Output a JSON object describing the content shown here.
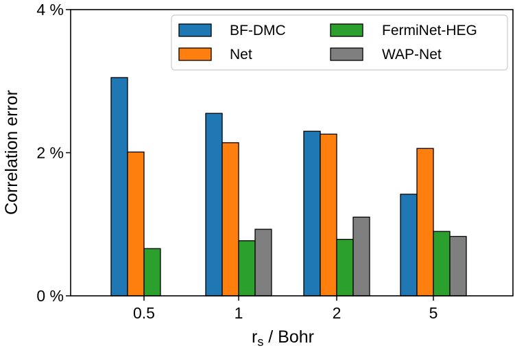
{
  "chart_data": {
    "type": "bar",
    "categories": [
      "0.5",
      "1",
      "2",
      "5"
    ],
    "series": [
      {
        "name": "BF-DMC",
        "color": "#1f77b4",
        "values": [
          3.05,
          2.55,
          2.3,
          1.42
        ]
      },
      {
        "name": "Net",
        "color": "#ff7f0e",
        "values": [
          2.01,
          2.14,
          2.26,
          2.06
        ]
      },
      {
        "name": "FermiNet-HEG",
        "color": "#2ca02c",
        "values": [
          0.66,
          0.77,
          0.79,
          0.9
        ]
      },
      {
        "name": "WAP-Net",
        "color": "#7f7f7f",
        "values": [
          null,
          0.93,
          1.1,
          0.83
        ]
      }
    ],
    "ylim": [
      0,
      4
    ],
    "yticks": [
      {
        "value": 0,
        "label": "0 %"
      },
      {
        "value": 2,
        "label": "2 %"
      },
      {
        "value": 4,
        "label": "4 %"
      }
    ],
    "ylabel": "Correlation error",
    "xlabel": {
      "main": "r",
      "subscript": "s",
      "suffix": " / Bohr"
    },
    "legend": {
      "placement": "top-right",
      "columns": 2
    }
  }
}
